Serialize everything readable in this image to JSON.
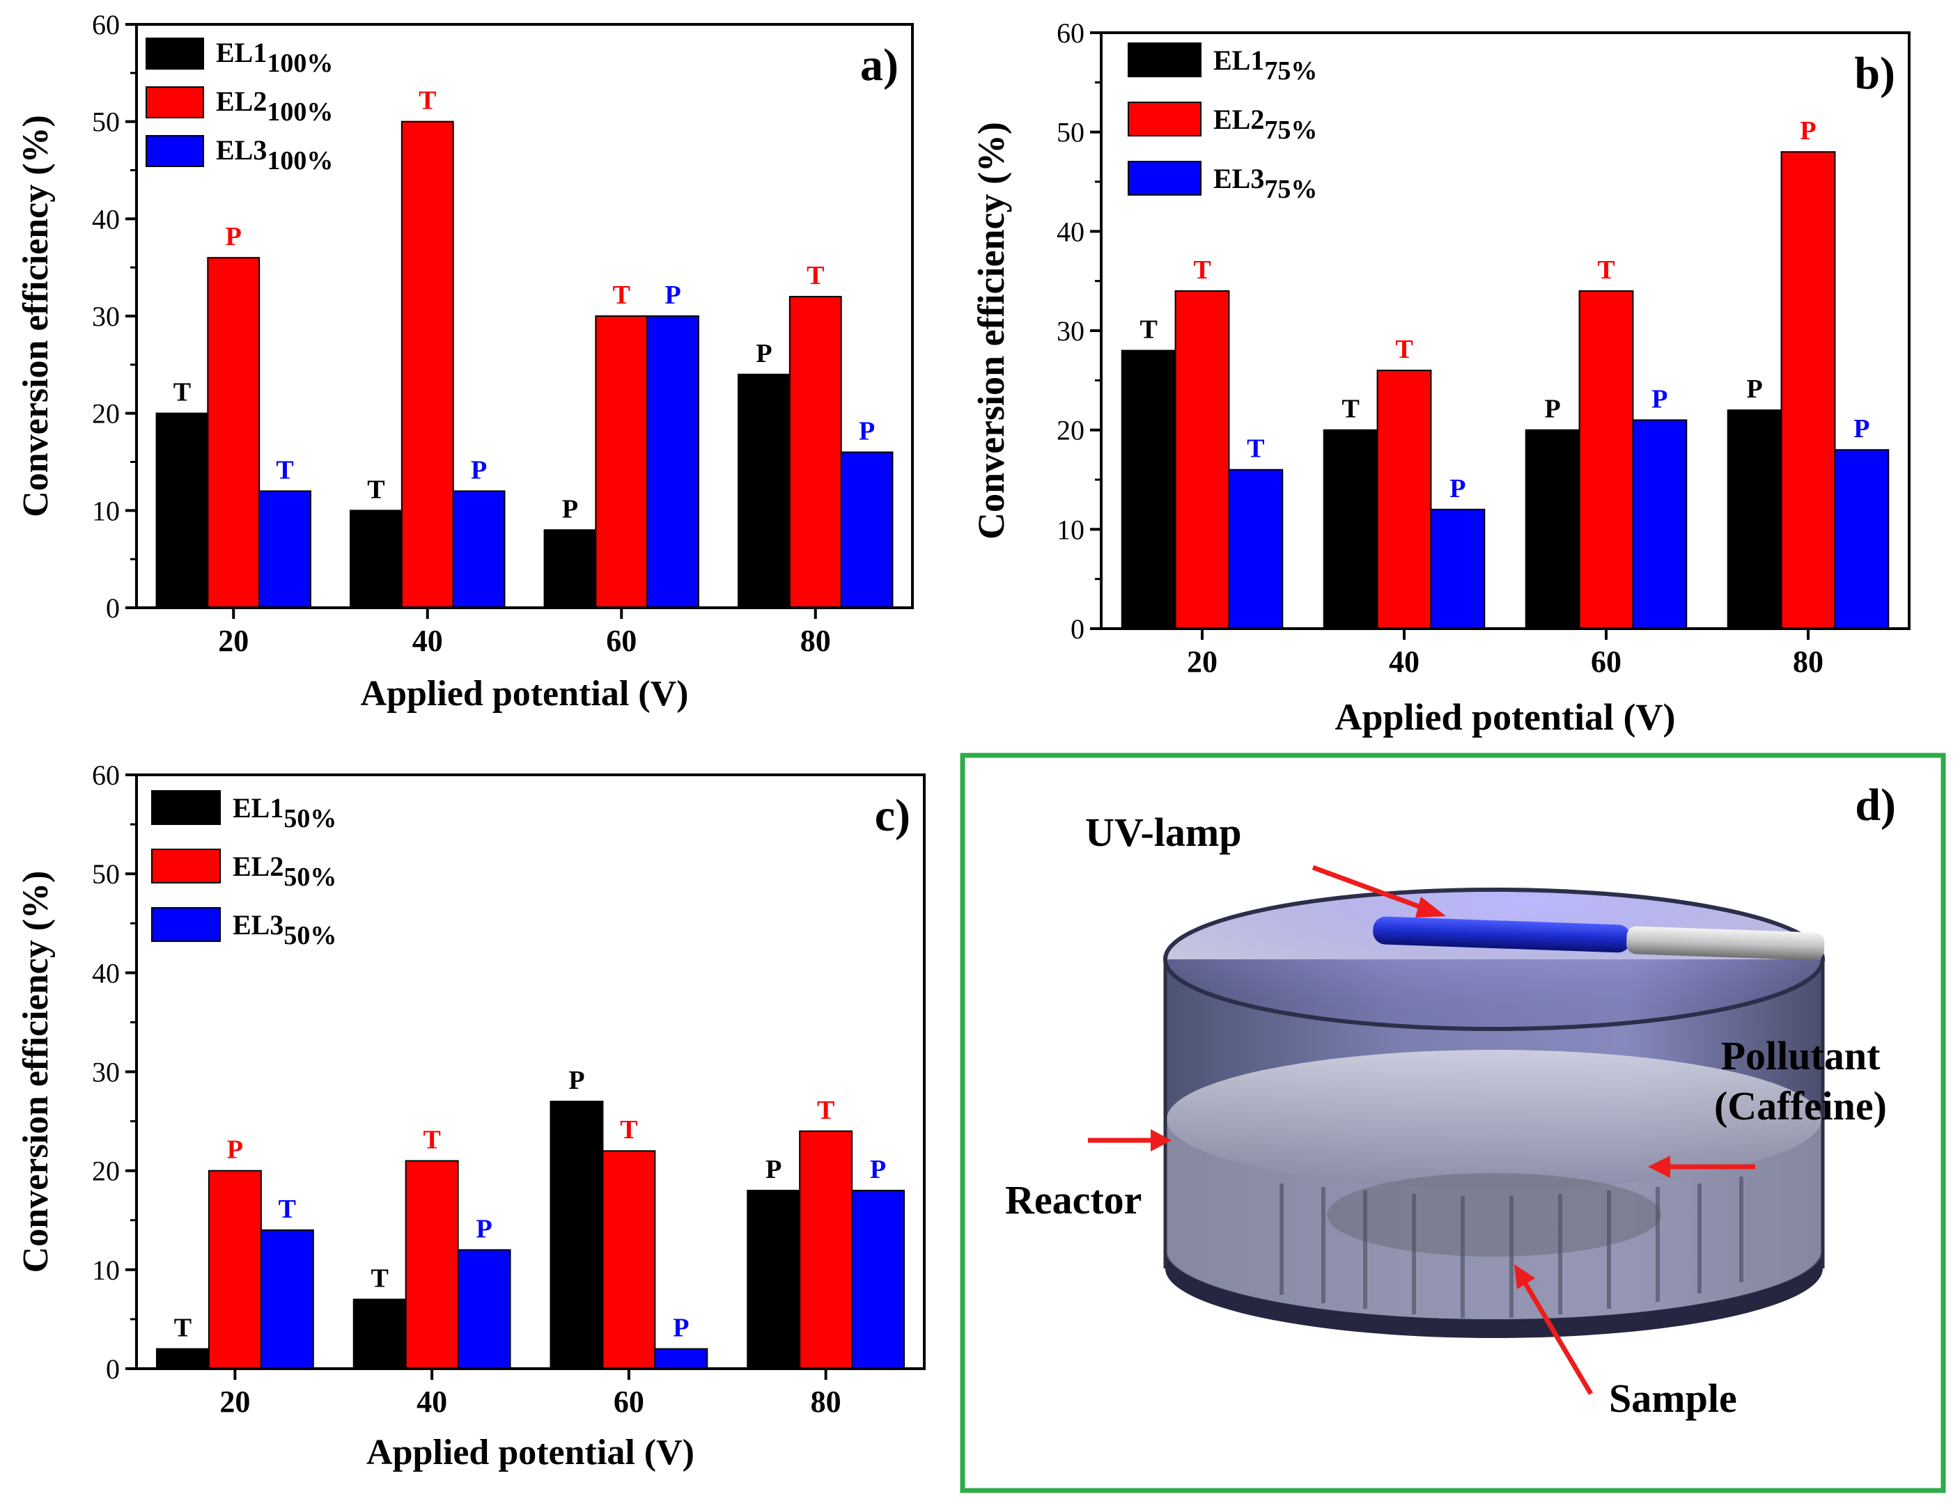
{
  "colors": {
    "EL1": "#000000",
    "EL2": "#ff0000",
    "EL3": "#0000ff",
    "frame": "#2eab4a"
  },
  "chart_data": [
    {
      "type": "bar",
      "panel_label": "a)",
      "categories": [
        "20",
        "40",
        "60",
        "80"
      ],
      "xlabel": "Applied potential (V)",
      "ylabel": "Conversion efficiency (%)",
      "ylim": [
        0,
        60
      ],
      "yticks": [
        "0",
        "10",
        "20",
        "30",
        "40",
        "50",
        "60"
      ],
      "legend_position": "top-left",
      "series": [
        {
          "key": "EL1",
          "name": "EL1",
          "sub": "100%",
          "values": [
            20,
            10,
            8,
            24
          ],
          "markers": [
            "T",
            "T",
            "P",
            "P"
          ]
        },
        {
          "key": "EL2",
          "name": "EL2",
          "sub": "100%",
          "values": [
            36,
            50,
            30,
            32
          ],
          "markers": [
            "P",
            "T",
            "T",
            "T"
          ]
        },
        {
          "key": "EL3",
          "name": "EL3",
          "sub": "100%",
          "values": [
            12,
            12,
            30,
            16
          ],
          "markers": [
            "T",
            "P",
            "P",
            "P"
          ]
        }
      ]
    },
    {
      "type": "bar",
      "panel_label": "b)",
      "categories": [
        "20",
        "40",
        "60",
        "80"
      ],
      "xlabel": "Applied potential (V)",
      "ylabel": "Conversion efficiency (%)",
      "ylim": [
        0,
        60
      ],
      "yticks": [
        "0",
        "10",
        "20",
        "30",
        "40",
        "50",
        "60"
      ],
      "legend_position": "top-left",
      "series": [
        {
          "key": "EL1",
          "name": "EL1",
          "sub": "75%",
          "values": [
            28,
            20,
            20,
            22
          ],
          "markers": [
            "T",
            "T",
            "P",
            "P"
          ]
        },
        {
          "key": "EL2",
          "name": "EL2",
          "sub": "75%",
          "values": [
            34,
            26,
            34,
            48
          ],
          "markers": [
            "T",
            "T",
            "T",
            "P"
          ]
        },
        {
          "key": "EL3",
          "name": "EL3",
          "sub": "75%",
          "values": [
            16,
            12,
            21,
            18
          ],
          "markers": [
            "T",
            "P",
            "P",
            "P"
          ]
        }
      ]
    },
    {
      "type": "bar",
      "panel_label": "c)",
      "categories": [
        "20",
        "40",
        "60",
        "80"
      ],
      "xlabel": "Applied potential (V)",
      "ylabel": "Conversion efficiency (%)",
      "ylim": [
        0,
        60
      ],
      "yticks": [
        "0",
        "10",
        "20",
        "30",
        "40",
        "50",
        "60"
      ],
      "legend_position": "top-left",
      "series": [
        {
          "key": "EL1",
          "name": "EL1",
          "sub": "50%",
          "values": [
            2,
            7,
            27,
            18
          ],
          "markers": [
            "T",
            "T",
            "P",
            "P"
          ]
        },
        {
          "key": "EL2",
          "name": "EL2",
          "sub": "50%",
          "values": [
            20,
            21,
            22,
            24
          ],
          "markers": [
            "P",
            "T",
            "T",
            "T"
          ]
        },
        {
          "key": "EL3",
          "name": "EL3",
          "sub": "50%",
          "values": [
            14,
            12,
            2,
            18
          ],
          "markers": [
            "T",
            "P",
            "P",
            "P"
          ]
        }
      ]
    }
  ],
  "diagram": {
    "panel_label": "d)",
    "labels": {
      "uv_lamp": "UV-lamp",
      "pollutant_line1": "Pollutant",
      "pollutant_line2": "(Caffeine)",
      "reactor": "Reactor",
      "sample": "Sample"
    }
  }
}
